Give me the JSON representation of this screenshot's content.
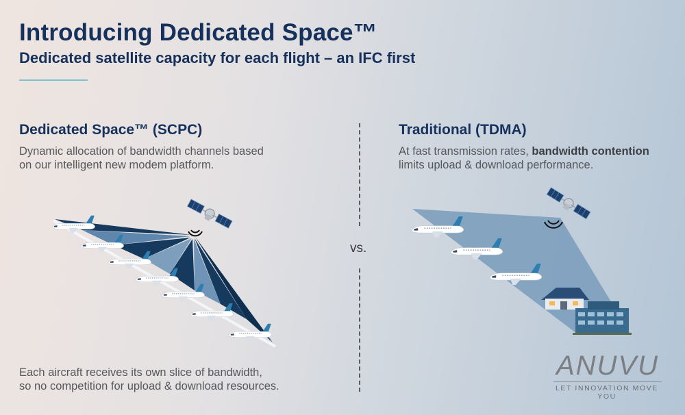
{
  "header": {
    "title": "Introducing Dedicated Space™",
    "subtitle": "Dedicated satellite capacity for each flight – an IFC first"
  },
  "left": {
    "heading": "Dedicated Space™ (SCPC)",
    "desc_line1": "Dynamic allocation of bandwidth channels based",
    "desc_line2": "on our intelligent new modem platform.",
    "footer_line1": "Each aircraft receives its own slice of bandwidth,",
    "footer_line2": "so no competition for upload & download resources."
  },
  "vs_label": "vs.",
  "right": {
    "heading": "Traditional (TDMA)",
    "desc_pre": "At fast transmission rates, ",
    "desc_bold": "bandwidth contention",
    "desc_line2": "limits upload & download performance."
  },
  "brand": {
    "name": "ANUVU",
    "tagline": "LET INNOVATION MOVE YOU"
  },
  "colors": {
    "navy": "#16315c",
    "beam_dark": "#153a5e",
    "beam_light": "#7d9fbd",
    "accent": "#7fc2d3"
  }
}
